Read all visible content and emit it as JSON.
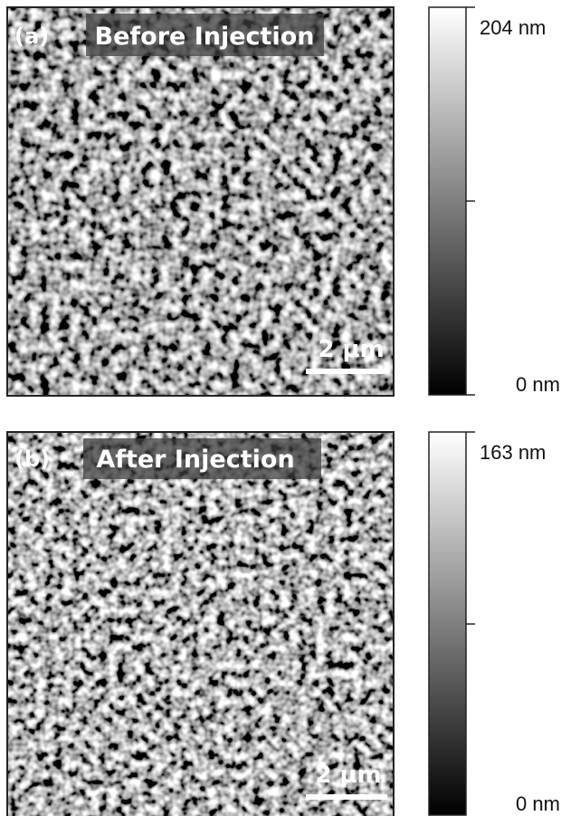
{
  "panels": [
    {
      "label": "(a)",
      "title": "Before Injection",
      "scale_bar": "2 µm",
      "colorbar_max": "204 nm",
      "colorbar_min": "0 nm"
    },
    {
      "label": "(b)",
      "title": "After Injection",
      "scale_bar": "2 µm",
      "colorbar_max": "163 nm",
      "colorbar_min": "0 nm"
    }
  ]
}
